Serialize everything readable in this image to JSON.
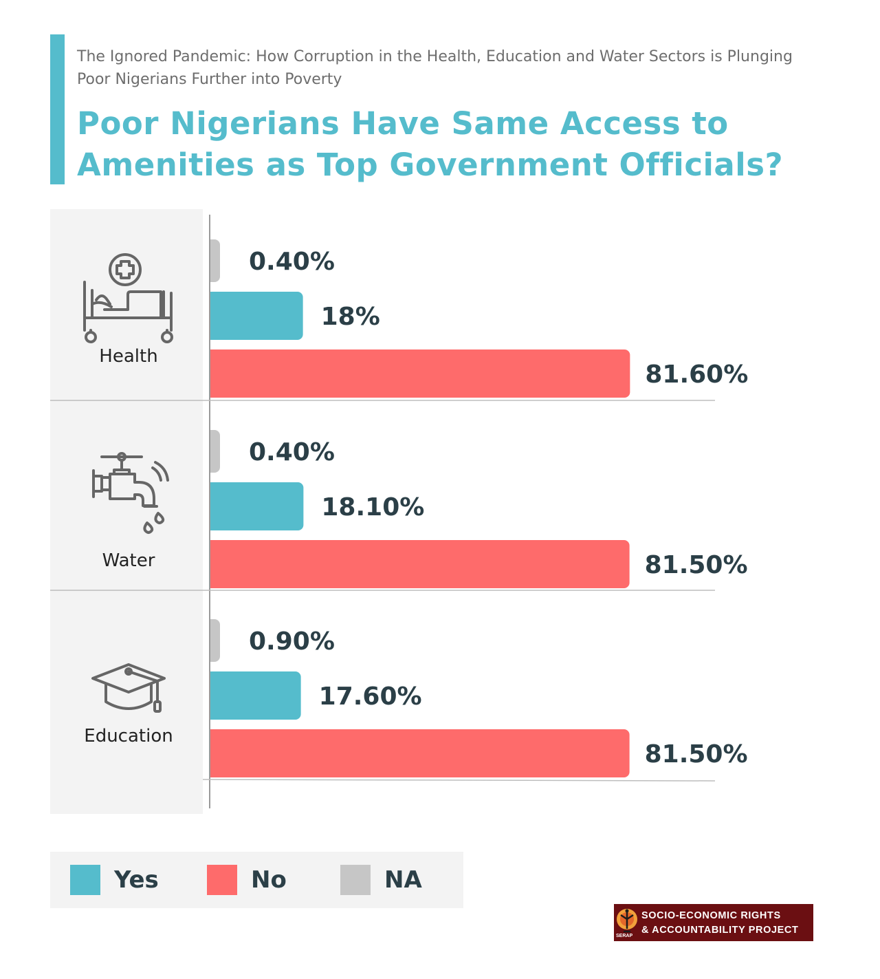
{
  "header": {
    "subtitle": "The Ignored Pandemic: How Corruption in the Health, Education and Water Sectors is Plunging Poor Nigerians Further into Poverty",
    "title": "Poor Nigerians Have Same Access to Amenities as Top Government Officials?"
  },
  "chart_data": {
    "type": "bar",
    "orientation": "horizontal",
    "title": "Poor Nigerians Have Same Access to Amenities as Top Government Officials?",
    "categories": [
      "Health",
      "Water",
      "Education"
    ],
    "series": [
      {
        "name": "NA",
        "color": "#c6c6c6",
        "values": [
          0.4,
          0.4,
          0.9
        ],
        "labels": [
          "0.40%",
          "0.40%",
          "0.90%"
        ]
      },
      {
        "name": "Yes",
        "color": "#55bccc",
        "values": [
          18,
          18.1,
          17.6
        ],
        "labels": [
          "18%",
          "18.10%",
          "17.60%"
        ]
      },
      {
        "name": "No",
        "color": "#fe6b6b",
        "values": [
          81.6,
          81.5,
          81.5
        ],
        "labels": [
          "81.60%",
          "81.50%",
          "81.50%"
        ]
      }
    ],
    "xlim": [
      0,
      100
    ],
    "grid": false,
    "legend_placement": "bottom"
  },
  "categories": [
    {
      "label": "Health",
      "icon": "hospital-bed-icon"
    },
    {
      "label": "Water",
      "icon": "water-tap-icon"
    },
    {
      "label": "Education",
      "icon": "graduation-cap-icon"
    }
  ],
  "legend": [
    {
      "label": "Yes",
      "color": "#55bccc"
    },
    {
      "label": "No",
      "color": "#fe6b6b"
    },
    {
      "label": "NA",
      "color": "#c6c6c6"
    }
  ],
  "logo": {
    "line1": "SOCIO-ECONOMIC RIGHTS",
    "line2": "& ACCOUNTABILITY PROJECT",
    "mark": "SERAP"
  }
}
